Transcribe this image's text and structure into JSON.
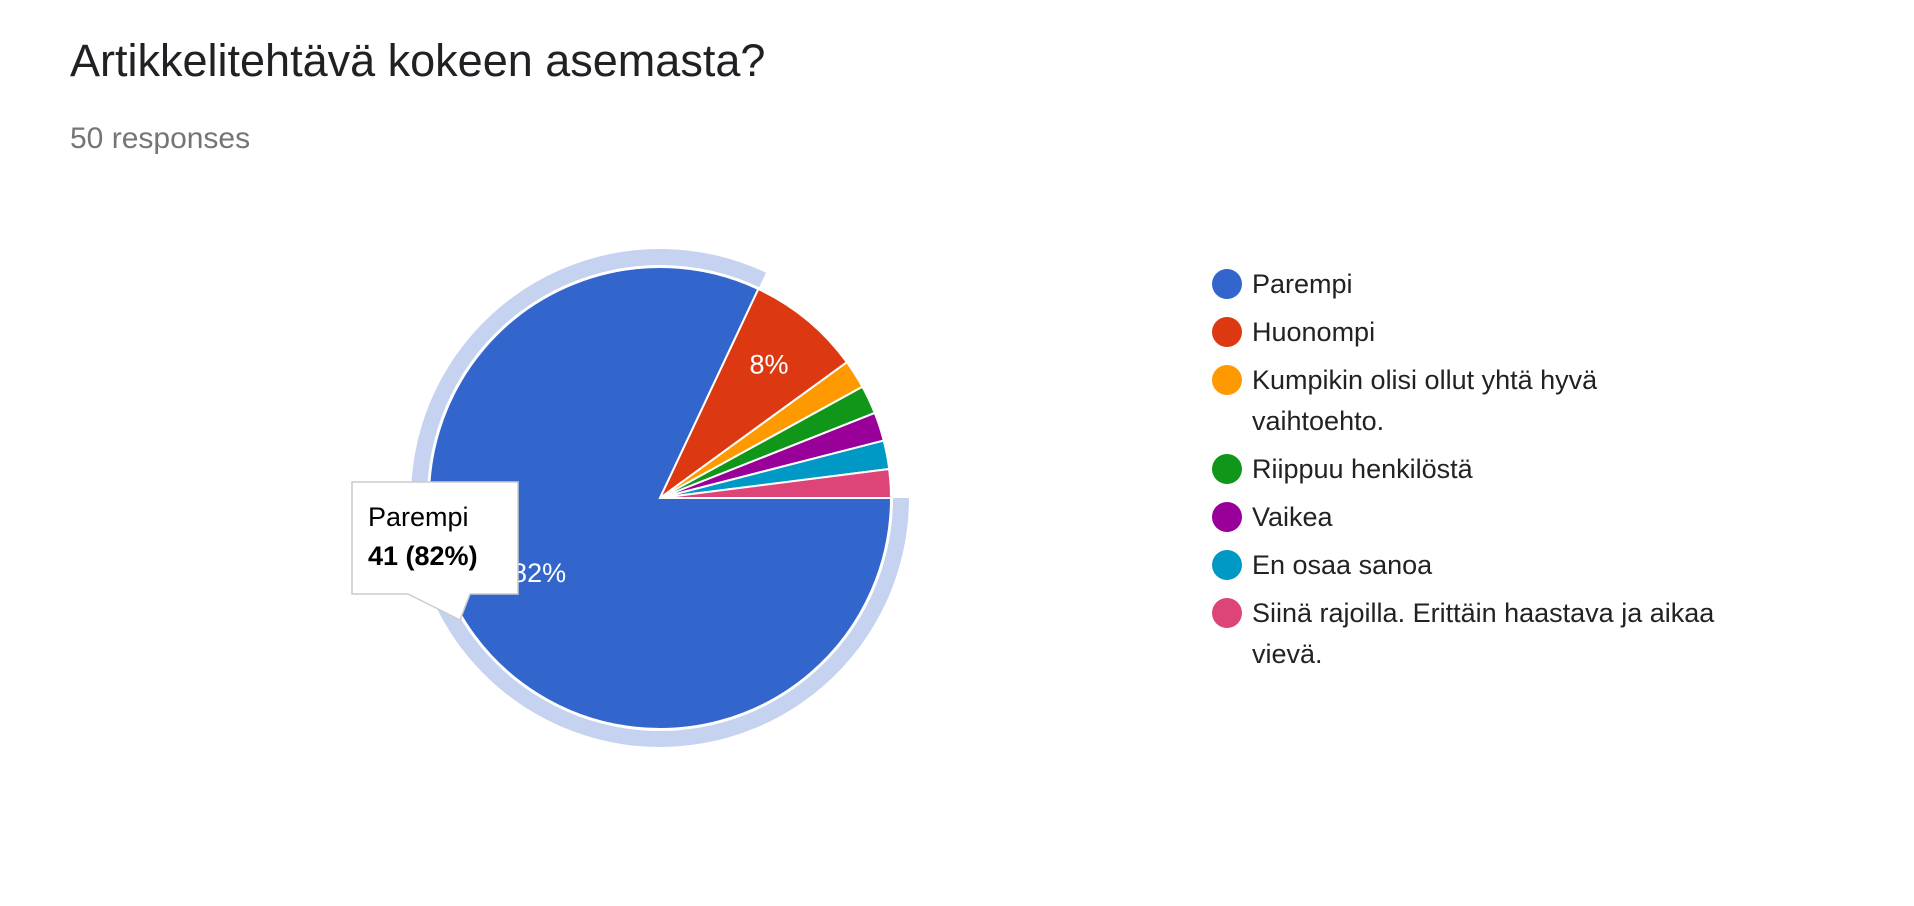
{
  "chart_data": {
    "type": "pie",
    "title": "Artikkelitehtävä kokeen asemasta?",
    "subtitle": "50 responses",
    "categories": [
      "Parempi",
      "Huonompi",
      "Kumpikin olisi ollut yhtä hyvä vaihtoehto.",
      "Riippuu henkilöstä",
      "Vaikea",
      "En osaa sanoa",
      "Siinä rajoilla. Erittäin haastava ja aikaa vievä."
    ],
    "values": [
      82,
      8,
      2,
      2,
      2,
      2,
      2
    ],
    "value_labels": [
      "82%",
      "8%",
      null,
      null,
      null,
      null,
      null
    ],
    "colors": [
      "#3366cc",
      "#dc3912",
      "#ff9900",
      "#109618",
      "#990099",
      "#0099c6",
      "#dd4477"
    ],
    "legend": "right",
    "tooltip": {
      "label": "Parempi",
      "text": "41 (82%)"
    }
  }
}
